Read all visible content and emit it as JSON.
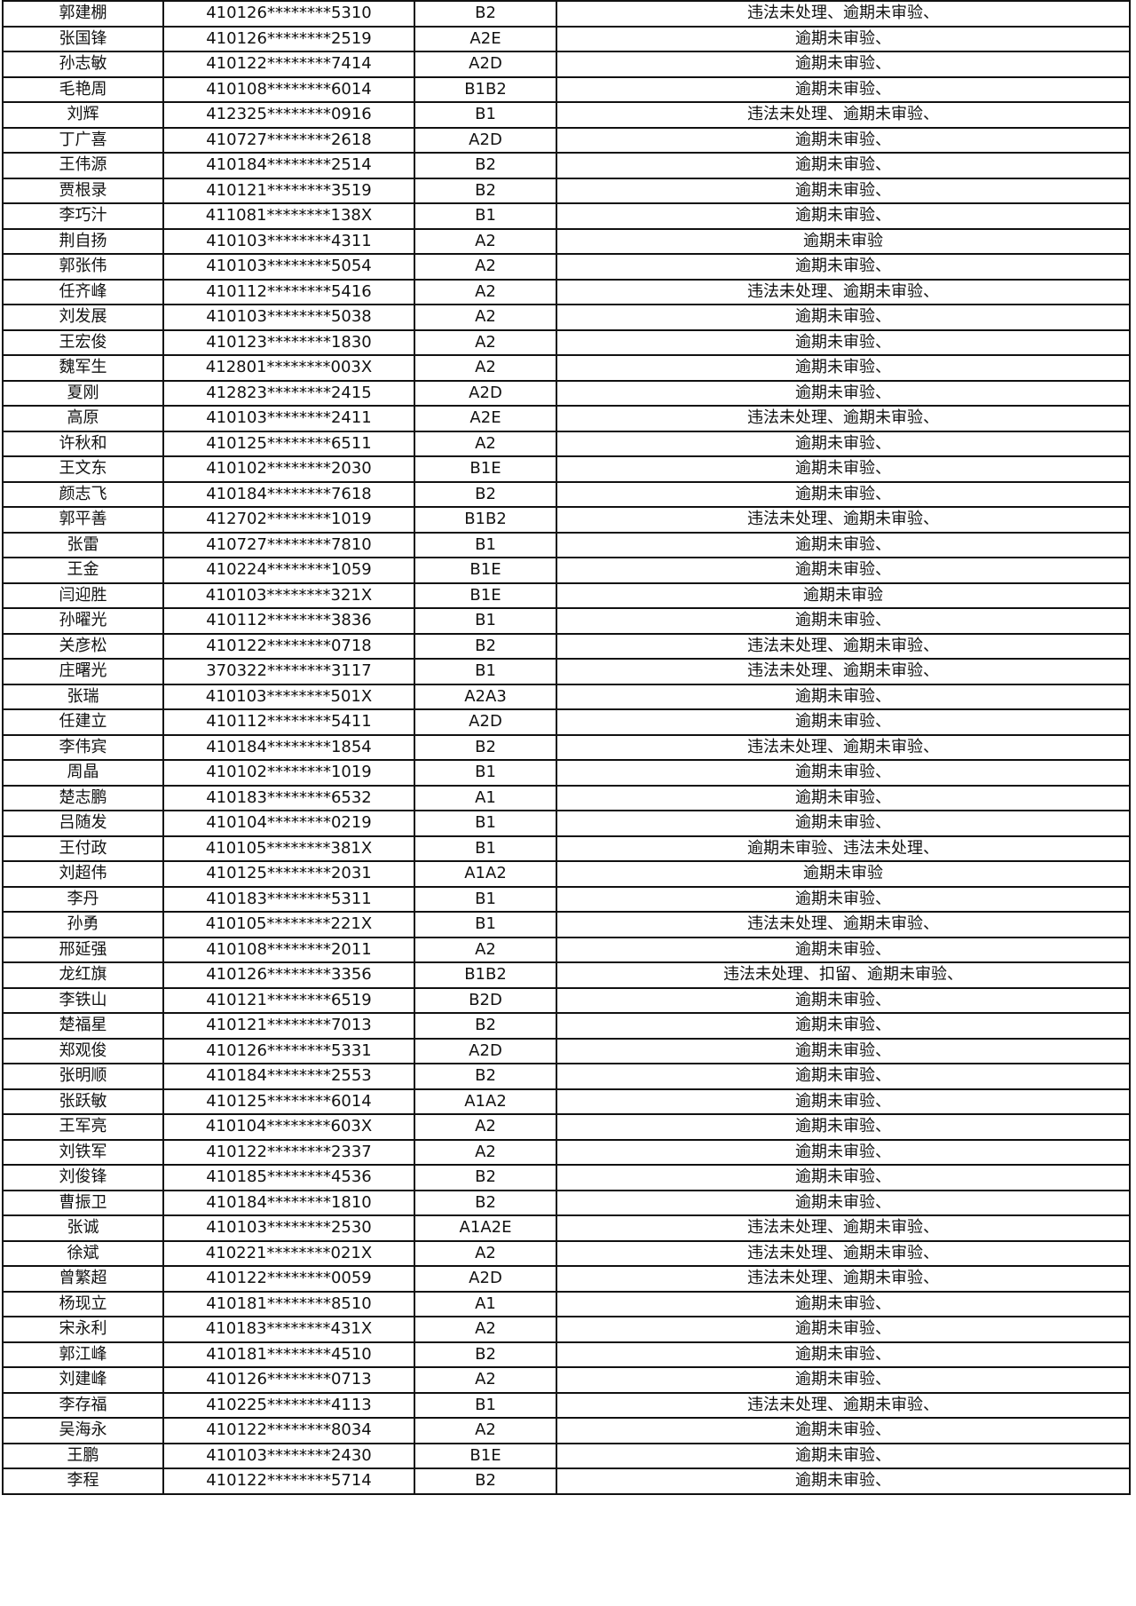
{
  "rows": [
    [
      "郭建棚",
      "410126********5310",
      "B2",
      "违法未处理、逾期未审验、"
    ],
    [
      "张国锋",
      "410126********2519",
      "A2E",
      "逾期未审验、"
    ],
    [
      "孙志敏",
      "410122********7414",
      "A2D",
      "逾期未审验、"
    ],
    [
      "毛艳周",
      "410108********6014",
      "B1B2",
      "逾期未审验、"
    ],
    [
      "刘辉",
      "412325********0916",
      "B1",
      "违法未处理、逾期未审验、"
    ],
    [
      "丁广喜",
      "410727********2618",
      "A2D",
      "逾期未审验、"
    ],
    [
      "王伟源",
      "410184********2514",
      "B2",
      "逾期未审验、"
    ],
    [
      "贾根录",
      "410121********3519",
      "B2",
      "逾期未审验、"
    ],
    [
      "李巧汁",
      "411081********138X",
      "B1",
      "逾期未审验、"
    ],
    [
      "荆自扬",
      "410103********4311",
      "A2",
      "逾期未审验"
    ],
    [
      "郭张伟",
      "410103********5054",
      "A2",
      "逾期未审验、"
    ],
    [
      "任齐峰",
      "410112********5416",
      "A2",
      "违法未处理、逾期未审验、"
    ],
    [
      "刘发展",
      "410103********5038",
      "A2",
      "逾期未审验、"
    ],
    [
      "王宏俊",
      "410123********1830",
      "A2",
      "逾期未审验、"
    ],
    [
      "魏军生",
      "412801********003X",
      "A2",
      "逾期未审验、"
    ],
    [
      "夏刚",
      "412823********2415",
      "A2D",
      "逾期未审验、"
    ],
    [
      "高原",
      "410103********2411",
      "A2E",
      "违法未处理、逾期未审验、"
    ],
    [
      "许秋和",
      "410125********6511",
      "A2",
      "逾期未审验、"
    ],
    [
      "王文东",
      "410102********2030",
      "B1E",
      "逾期未审验、"
    ],
    [
      "颜志飞",
      "410184********7618",
      "B2",
      "逾期未审验、"
    ],
    [
      "郭平善",
      "412702********1019",
      "B1B2",
      "违法未处理、逾期未审验、"
    ],
    [
      "张雷",
      "410727********7810",
      "B1",
      "逾期未审验、"
    ],
    [
      "王金",
      "410224********1059",
      "B1E",
      "逾期未审验、"
    ],
    [
      "闫迎胜",
      "410103********321X",
      "B1E",
      "逾期未审验"
    ],
    [
      "孙曜光",
      "410112********3836",
      "B1",
      "逾期未审验、"
    ],
    [
      "关彦松",
      "410122********0718",
      "B2",
      "违法未处理、逾期未审验、"
    ],
    [
      "庄曙光",
      "370322********3117",
      "B1",
      "违法未处理、逾期未审验、"
    ],
    [
      "张瑞",
      "410103********501X",
      "A2A3",
      "逾期未审验、"
    ],
    [
      "任建立",
      "410112********5411",
      "A2D",
      "逾期未审验、"
    ],
    [
      "李伟宾",
      "410184********1854",
      "B2",
      "违法未处理、逾期未审验、"
    ],
    [
      "周晶",
      "410102********1019",
      "B1",
      "逾期未审验、"
    ],
    [
      "楚志鹏",
      "410183********6532",
      "A1",
      "逾期未审验、"
    ],
    [
      "吕随发",
      "410104********0219",
      "B1",
      "逾期未审验、"
    ],
    [
      "王付政",
      "410105********381X",
      "B1",
      "逾期未审验、违法未处理、"
    ],
    [
      "刘超伟",
      "410125********2031",
      "A1A2",
      "逾期未审验"
    ],
    [
      "李丹",
      "410183********5311",
      "B1",
      "逾期未审验、"
    ],
    [
      "孙勇",
      "410105********221X",
      "B1",
      "违法未处理、逾期未审验、"
    ],
    [
      "邢延强",
      "410108********2011",
      "A2",
      "逾期未审验、"
    ],
    [
      "龙红旗",
      "410126********3356",
      "B1B2",
      "违法未处理、扣留、逾期未审验、"
    ],
    [
      "李铁山",
      "410121********6519",
      "B2D",
      "逾期未审验、"
    ],
    [
      "楚福星",
      "410121********7013",
      "B2",
      "逾期未审验、"
    ],
    [
      "郑观俊",
      "410126********5331",
      "A2D",
      "逾期未审验、"
    ],
    [
      "张明顺",
      "410184********2553",
      "B2",
      "逾期未审验、"
    ],
    [
      "张跃敏",
      "410125********6014",
      "A1A2",
      "逾期未审验、"
    ],
    [
      "王军亮",
      "410104********603X",
      "A2",
      "逾期未审验、"
    ],
    [
      "刘铁军",
      "410122********2337",
      "A2",
      "逾期未审验、"
    ],
    [
      "刘俊锋",
      "410185********4536",
      "B2",
      "逾期未审验、"
    ],
    [
      "曹振卫",
      "410184********1810",
      "B2",
      "逾期未审验、"
    ],
    [
      "张诚",
      "410103********2530",
      "A1A2E",
      "违法未处理、逾期未审验、"
    ],
    [
      "徐斌",
      "410221********021X",
      "A2",
      "违法未处理、逾期未审验、"
    ],
    [
      "曾繁超",
      "410122********0059",
      "A2D",
      "违法未处理、逾期未审验、"
    ],
    [
      "杨现立",
      "410181********8510",
      "A1",
      "逾期未审验、"
    ],
    [
      "宋永利",
      "410183********431X",
      "A2",
      "逾期未审验、"
    ],
    [
      "郭江峰",
      "410181********4510",
      "B2",
      "逾期未审验、"
    ],
    [
      "刘建峰",
      "410126********0713",
      "A2",
      "逾期未审验、"
    ],
    [
      "李存福",
      "410225********4113",
      "B1",
      "违法未处理、逾期未审验、"
    ],
    [
      "吴海永",
      "410122********8034",
      "A2",
      "逾期未审验、"
    ],
    [
      "王鹏",
      "410103********2430",
      "B1E",
      "逾期未审验、"
    ],
    [
      "李程",
      "410122********5714",
      "B2",
      "逾期未审验、"
    ]
  ]
}
